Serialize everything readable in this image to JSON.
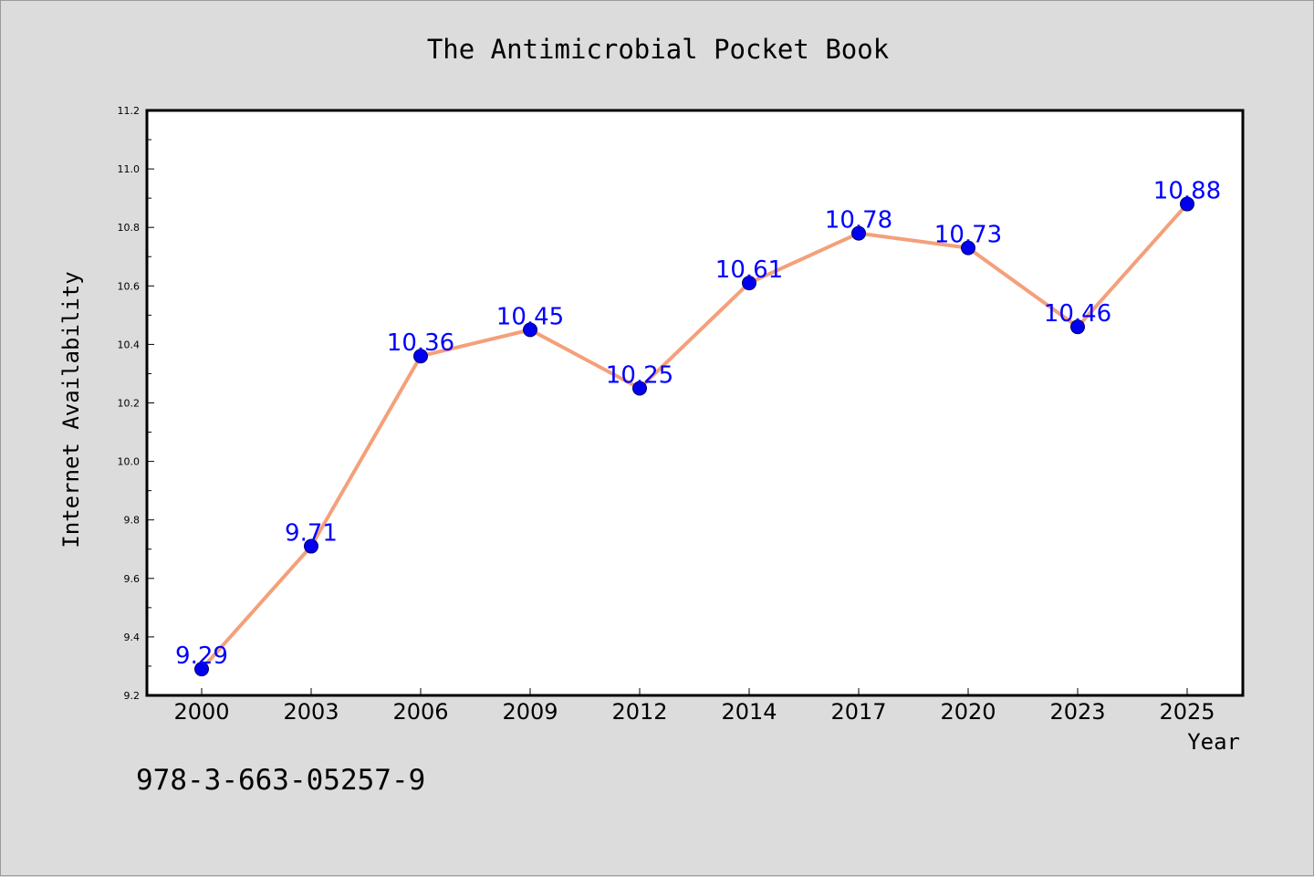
{
  "figure": {
    "background": "#dcdcdc",
    "footnote": "978-3-663-05257-9"
  },
  "chart_data": {
    "type": "line",
    "title": "The Antimicrobial Pocket Book",
    "xlabel": "Year",
    "ylabel": "Internet Availability",
    "categories": [
      "2000",
      "2003",
      "2006",
      "2009",
      "2012",
      "2014",
      "2017",
      "2020",
      "2023",
      "2025"
    ],
    "series": [
      {
        "values": [
          9.29,
          9.71,
          10.36,
          10.45,
          10.25,
          10.61,
          10.78,
          10.73,
          10.46,
          10.88
        ],
        "labels": [
          "9.29",
          "9.71",
          "10.36",
          "10.45",
          "10.25",
          "10.61",
          "10.78",
          "10.73",
          "10.46",
          "10.88"
        ],
        "line_color": "#f4a07a",
        "marker_color": "#0000ee",
        "label_color": "#0000ff"
      }
    ],
    "ylim": [
      9.2,
      11.2
    ],
    "yticks": [
      "9.2",
      "9.4",
      "9.6",
      "9.8",
      "10.0",
      "10.2",
      "10.4",
      "10.6",
      "10.8",
      "11.0",
      "11.2"
    ],
    "grid": false,
    "legend": "none"
  }
}
